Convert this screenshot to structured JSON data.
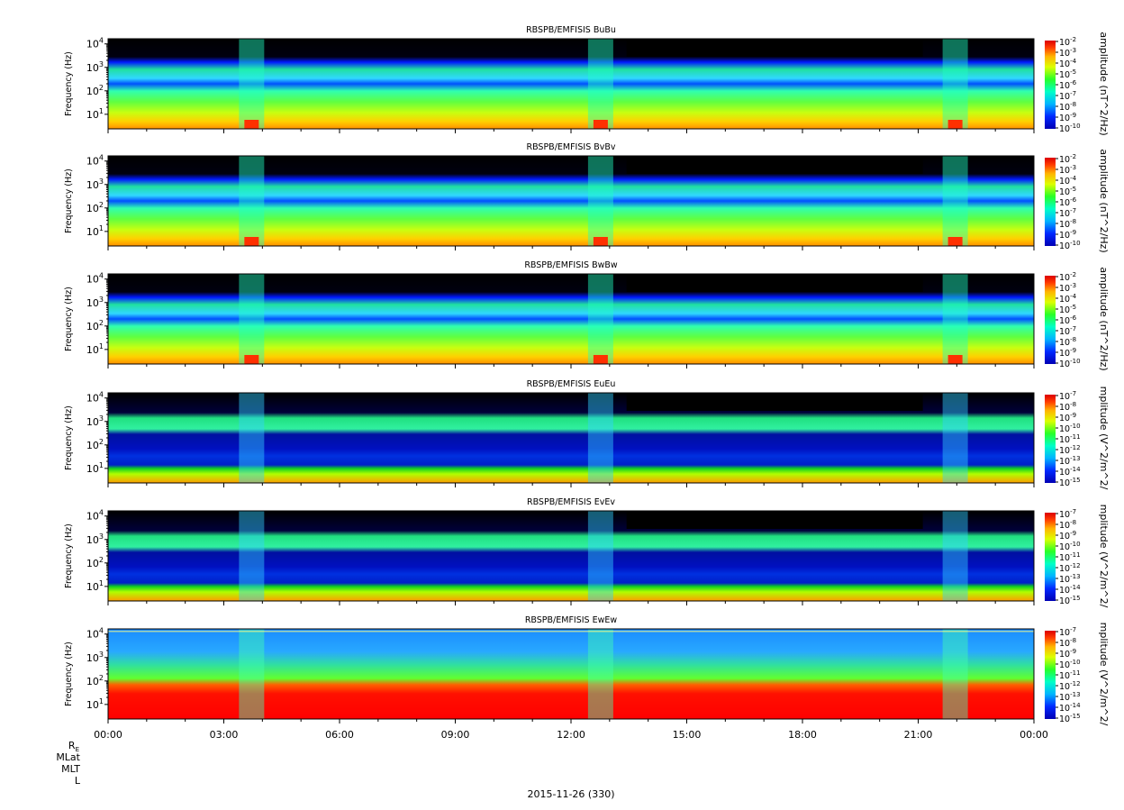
{
  "figure": {
    "date_label": "2015-11-26 (330)",
    "row_labels": [
      "R",
      "MLat",
      "MLT",
      "L"
    ],
    "row_label_subscript": "E",
    "x_ticks": [
      "00:00",
      "03:00",
      "06:00",
      "09:00",
      "12:00",
      "15:00",
      "18:00",
      "21:00",
      "00:00"
    ]
  },
  "chart_data": [
    {
      "type": "heatmap",
      "title": "RBSPB/EMFISIS  BuBu",
      "ylabel": "Frequency (Hz)",
      "y_scale": "log",
      "y_ticks": [
        10,
        100,
        1000,
        10000
      ],
      "colorbar_label": "amplitude (nT^2/Hz)",
      "colorbar_ticks": [
        "-2",
        "-3",
        "-4",
        "-5",
        "-6",
        "-7",
        "-8",
        "-9",
        "-10"
      ],
      "colorbar_scale": "log",
      "x_range": [
        "00:00",
        "00:00"
      ]
    },
    {
      "type": "heatmap",
      "title": "RBSPB/EMFISIS  BvBv",
      "ylabel": "Frequency (Hz)",
      "y_scale": "log",
      "y_ticks": [
        10,
        100,
        1000,
        10000
      ],
      "colorbar_label": "amplitude (nT^2/Hz)",
      "colorbar_ticks": [
        "-2",
        "-3",
        "-4",
        "-5",
        "-6",
        "-7",
        "-8",
        "-9",
        "-10"
      ],
      "colorbar_scale": "log",
      "x_range": [
        "00:00",
        "00:00"
      ]
    },
    {
      "type": "heatmap",
      "title": "RBSPB/EMFISIS  BwBw",
      "ylabel": "Frequency (Hz)",
      "y_scale": "log",
      "y_ticks": [
        10,
        100,
        1000,
        10000
      ],
      "colorbar_label": "amplitude (nT^2/Hz)",
      "colorbar_ticks": [
        "-2",
        "-3",
        "-4",
        "-5",
        "-6",
        "-7",
        "-8",
        "-9",
        "-10"
      ],
      "colorbar_scale": "log",
      "x_range": [
        "00:00",
        "00:00"
      ]
    },
    {
      "type": "heatmap",
      "title": "RBSPB/EMFISIS  EuEu",
      "ylabel": "Frequency (Hz)",
      "y_scale": "log",
      "y_ticks": [
        10,
        100,
        1000,
        10000
      ],
      "colorbar_label": "mplitude (V^2/m^2/",
      "colorbar_ticks": [
        "-7",
        "-8",
        "-9",
        "-10",
        "-11",
        "-12",
        "-13",
        "-14",
        "-15"
      ],
      "colorbar_scale": "log",
      "x_range": [
        "00:00",
        "00:00"
      ]
    },
    {
      "type": "heatmap",
      "title": "RBSPB/EMFISIS  EvEv",
      "ylabel": "Frequency (Hz)",
      "y_scale": "log",
      "y_ticks": [
        10,
        100,
        1000,
        10000
      ],
      "colorbar_label": "mplitude (V^2/m^2/",
      "colorbar_ticks": [
        "-7",
        "-8",
        "-9",
        "-10",
        "-11",
        "-12",
        "-13",
        "-14",
        "-15"
      ],
      "colorbar_scale": "log",
      "x_range": [
        "00:00",
        "00:00"
      ]
    },
    {
      "type": "heatmap",
      "title": "RBSPB/EMFISIS  EwEw",
      "ylabel": "Frequency (Hz)",
      "y_scale": "log",
      "y_ticks": [
        10,
        100,
        1000,
        10000
      ],
      "colorbar_label": "mplitude (V^2/m^2/",
      "colorbar_ticks": [
        "-7",
        "-8",
        "-9",
        "-10",
        "-11",
        "-12",
        "-13",
        "-14",
        "-15"
      ],
      "colorbar_scale": "log",
      "x_range": [
        "00:00",
        "00:00"
      ]
    }
  ]
}
